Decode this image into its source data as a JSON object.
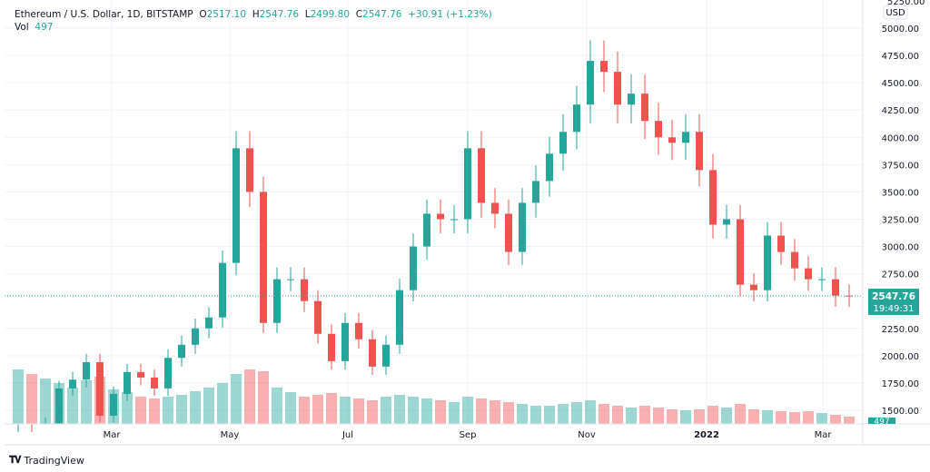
{
  "header": {
    "symbol": "Ethereum / U.S. Dollar, 1D, BITSTAMP",
    "o_label": "O",
    "o": "2517.10",
    "h_label": "H",
    "h": "2547.76",
    "l_label": "L",
    "l": "2499.80",
    "c_label": "C",
    "c": "2547.76",
    "change": "+30.91 (+1.23%)",
    "vol_label": "Vol",
    "vol": "497"
  },
  "price_axis": {
    "currency": "USD",
    "top_partial": "5250.00",
    "ticks": [
      "5000.00",
      "4750.00",
      "4500.00",
      "4250.00",
      "4000.00",
      "3750.00",
      "3500.00",
      "3250.00",
      "3000.00",
      "2750.00",
      "2250.00",
      "2000.00",
      "1750.00",
      "1500.00"
    ],
    "last_price": "2547.76",
    "countdown": "19:49:31",
    "vol_badge": "497"
  },
  "time_axis": {
    "ticks": [
      "Mar",
      "May",
      "Jul",
      "Sep",
      "Nov",
      "2022",
      "Mar"
    ]
  },
  "brand": {
    "name": "TradingView"
  },
  "colors": {
    "up": "#26a69a",
    "down": "#ef5350"
  },
  "chart_data": {
    "type": "candlestick",
    "interval": "weekly approximation of 1D",
    "start_open": 1100,
    "close": [
      1250,
      1230,
      1380,
      1700,
      1780,
      1940,
      1450,
      1650,
      1850,
      1800,
      1700,
      1980,
      2100,
      2250,
      2350,
      2850,
      3900,
      3500,
      2300,
      2700,
      2700,
      2500,
      2200,
      1950,
      2300,
      2150,
      1900,
      2100,
      2600,
      3000,
      3300,
      3250,
      3250,
      3900,
      3400,
      3300,
      2950,
      3400,
      3600,
      3850,
      4050,
      4300,
      4700,
      4600,
      4300,
      4400,
      4150,
      4000,
      3950,
      4050,
      3700,
      3200,
      3250,
      2650,
      2600,
      3100,
      2950,
      2800,
      2700,
      2700,
      2550,
      2547.76
    ],
    "volume": [
      60,
      55,
      50,
      45,
      40,
      48,
      52,
      38,
      35,
      30,
      28,
      30,
      32,
      36,
      40,
      45,
      55,
      60,
      58,
      40,
      35,
      30,
      32,
      34,
      30,
      28,
      26,
      30,
      32,
      30,
      28,
      26,
      24,
      30,
      28,
      26,
      24,
      22,
      20,
      20,
      22,
      24,
      26,
      22,
      20,
      18,
      20,
      18,
      16,
      15,
      16,
      20,
      18,
      22,
      16,
      15,
      14,
      13,
      14,
      12,
      10,
      8
    ],
    "ylim": [
      1500,
      5000
    ],
    "last_price": 2547.76
  }
}
